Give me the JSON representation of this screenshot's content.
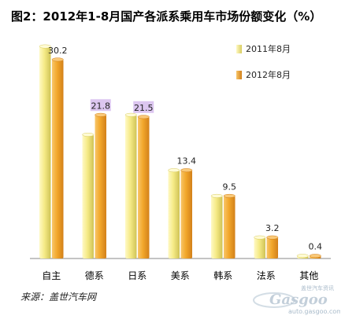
{
  "title": "图2：2012年1-8月国产各派系乘用车市场份额变化（%）",
  "source": "来源：盖世汽车网",
  "watermark": {
    "tagline": "盖世汽车资讯",
    "logo": "Gasgoo",
    "url": "auto.gasgoo.com"
  },
  "colors": {
    "series_2011": "#f5ea86",
    "series_2011_dark": "#cfc356",
    "series_2012": "#f2a72b",
    "series_2012_dark": "#d2801a",
    "highlight": "#dcc6f0"
  },
  "chart_data": {
    "type": "bar",
    "title": "图2：2012年1-8月国产各派系乘用车市场份额变化（%）",
    "categories": [
      "自主",
      "德系",
      "日系",
      "美系",
      "韩系",
      "法系",
      "其他"
    ],
    "series": [
      {
        "name": "2011年8月",
        "values": [
          32.2,
          18.8,
          21.8,
          13.4,
          9.5,
          3.2,
          0.4
        ]
      },
      {
        "name": "2012年8月",
        "values": [
          30.2,
          21.8,
          21.5,
          13.4,
          9.5,
          3.2,
          0.4
        ]
      }
    ],
    "data_labels": [
      "30.2",
      "21.8",
      "21.5",
      "13.4",
      "9.5",
      "3.2",
      "0.4"
    ],
    "highlighted_labels": [
      "21.8",
      "21.5"
    ],
    "ylim": [
      0,
      34
    ],
    "grid": false,
    "legend": "top-right",
    "xlabel": "",
    "ylabel": ""
  }
}
